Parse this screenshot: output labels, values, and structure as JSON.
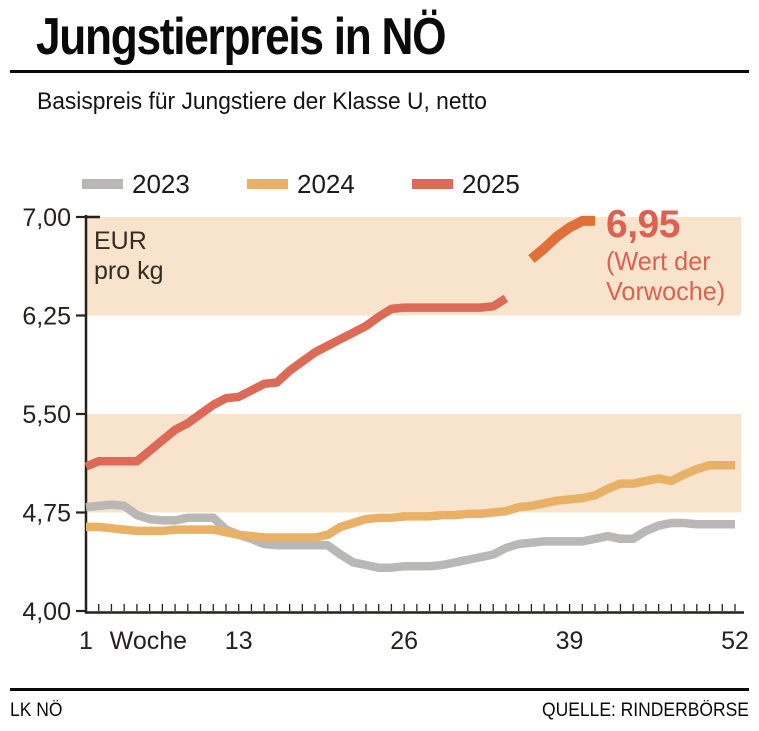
{
  "header": {
    "title": "Jungstierpreis in NÖ",
    "subtitle": "Basispreis für Jungstiere der Klasse U, netto"
  },
  "legend": [
    {
      "label": "2023",
      "color": "#b9b8b6"
    },
    {
      "label": "2024",
      "color": "#e8b166"
    },
    {
      "label": "2025",
      "color": "#dd6a57"
    }
  ],
  "annotation": {
    "value": "6,95",
    "note_line1": "(Wert der",
    "note_line2": "Vorwoche)",
    "color": "#dc6150"
  },
  "footer": {
    "left": "LK NÖ",
    "right": "QUELLE: RINDERBÖRSE"
  },
  "chart_data": {
    "type": "line",
    "title": "Jungstierpreis in NÖ",
    "subtitle": "Basispreis für Jungstiere der Klasse U, netto",
    "unit_label_line1": "EUR",
    "unit_label_line2": "pro kg",
    "x_axis": {
      "label": "Woche",
      "range": [
        1,
        52
      ],
      "minor_tick_every_week": true,
      "tick_labels": [
        {
          "label": "1",
          "week": 1
        },
        {
          "label": "Woche",
          "week": 5.9
        },
        {
          "label": "13",
          "week": 13
        },
        {
          "label": "26",
          "week": 26
        },
        {
          "label": "39",
          "week": 39
        },
        {
          "label": "52",
          "week": 52
        }
      ]
    },
    "y_axis": {
      "range": [
        4.0,
        7.0
      ],
      "tick_values": [
        7.0,
        6.25,
        5.5,
        4.75,
        4.0
      ],
      "tick_labels": [
        "7,00",
        "6,25",
        "5,50",
        "4,75",
        "4,00"
      ]
    },
    "shaded_bands": [
      [
        6.25,
        7.0
      ],
      [
        4.75,
        5.5
      ]
    ],
    "band_color": "#f8e4cd",
    "grid": false,
    "legend_position": "top",
    "series": [
      {
        "name": "2023",
        "color": "#b9b8b6",
        "start_week": 1,
        "values": [
          4.79,
          4.8,
          4.81,
          4.8,
          4.73,
          4.7,
          4.69,
          4.69,
          4.71,
          4.71,
          4.71,
          4.62,
          4.58,
          4.55,
          4.51,
          4.5,
          4.5,
          4.5,
          4.5,
          4.5,
          4.43,
          4.37,
          4.35,
          4.33,
          4.33,
          4.34,
          4.34,
          4.34,
          4.35,
          4.37,
          4.39,
          4.41,
          4.43,
          4.48,
          4.51,
          4.52,
          4.53,
          4.53,
          4.53,
          4.53,
          4.55,
          4.57,
          4.55,
          4.55,
          4.61,
          4.65,
          4.67,
          4.67,
          4.66,
          4.66,
          4.66,
          4.66
        ]
      },
      {
        "name": "2024",
        "color": "#e8b166",
        "start_week": 1,
        "values": [
          4.64,
          4.64,
          4.63,
          4.62,
          4.61,
          4.61,
          4.61,
          4.62,
          4.62,
          4.62,
          4.62,
          4.6,
          4.58,
          4.57,
          4.56,
          4.56,
          4.56,
          4.56,
          4.56,
          4.58,
          4.64,
          4.67,
          4.7,
          4.71,
          4.71,
          4.72,
          4.72,
          4.72,
          4.73,
          4.73,
          4.74,
          4.74,
          4.75,
          4.76,
          4.79,
          4.8,
          4.82,
          4.84,
          4.85,
          4.86,
          4.88,
          4.93,
          4.97,
          4.97,
          4.99,
          5.01,
          4.99,
          5.04,
          5.08,
          5.11,
          5.11,
          5.11
        ]
      },
      {
        "name": "2025",
        "color": "#dd6a57",
        "start_week": 1,
        "values": [
          5.1,
          5.14,
          5.14,
          5.14,
          5.14,
          5.22,
          5.3,
          5.38,
          5.43,
          5.5,
          5.57,
          5.62,
          5.63,
          5.68,
          5.73,
          5.74,
          5.83,
          5.9,
          5.97,
          6.02,
          6.07,
          6.12,
          6.17,
          6.24,
          6.3,
          6.31,
          6.31,
          6.31,
          6.31,
          6.31,
          6.31,
          6.31,
          6.32,
          6.38
        ]
      },
      {
        "name": "2025 aktuell",
        "color": "#e17038",
        "start_week": 36,
        "values": [
          6.68,
          6.76,
          6.85,
          6.92,
          6.97,
          6.97
        ]
      }
    ]
  }
}
